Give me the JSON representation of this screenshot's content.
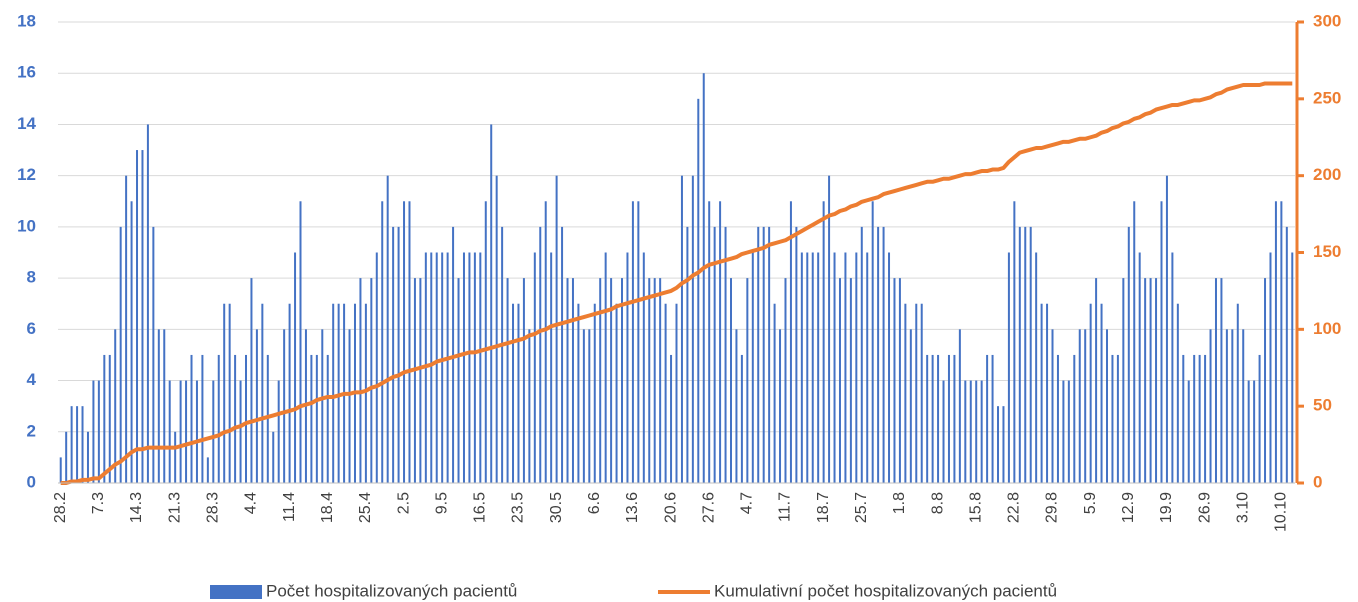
{
  "chart_data": {
    "type": "bar",
    "categories": [
      "28.2",
      null,
      null,
      null,
      null,
      null,
      null,
      "7.3",
      null,
      null,
      null,
      null,
      null,
      null,
      "14.3",
      null,
      null,
      null,
      null,
      null,
      null,
      "21.3",
      null,
      null,
      null,
      null,
      null,
      null,
      "28.3",
      null,
      null,
      null,
      null,
      null,
      null,
      "4.4",
      null,
      null,
      null,
      null,
      null,
      null,
      "11.4",
      null,
      null,
      null,
      null,
      null,
      null,
      "18.4",
      null,
      null,
      null,
      null,
      null,
      null,
      "25.4",
      null,
      null,
      null,
      null,
      null,
      null,
      "2.5",
      null,
      null,
      null,
      null,
      null,
      null,
      "9.5",
      null,
      null,
      null,
      null,
      null,
      null,
      "16.5",
      null,
      null,
      null,
      null,
      null,
      null,
      "23.5",
      null,
      null,
      null,
      null,
      null,
      null,
      "30.5",
      null,
      null,
      null,
      null,
      null,
      null,
      "6.6",
      null,
      null,
      null,
      null,
      null,
      null,
      "13.6",
      null,
      null,
      null,
      null,
      null,
      null,
      "20.6",
      null,
      null,
      null,
      null,
      null,
      null,
      "27.6",
      null,
      null,
      null,
      null,
      null,
      null,
      "4.7",
      null,
      null,
      null,
      null,
      null,
      null,
      "11.7",
      null,
      null,
      null,
      null,
      null,
      null,
      "18.7",
      null,
      null,
      null,
      null,
      null,
      null,
      "25.7",
      null,
      null,
      null,
      null,
      null,
      null,
      "1.8",
      null,
      null,
      null,
      null,
      null,
      null,
      "8.8",
      null,
      null,
      null,
      null,
      null,
      null,
      "15.8",
      null,
      null,
      null,
      null,
      null,
      null,
      "22.8",
      null,
      null,
      null,
      null,
      null,
      null,
      "29.8",
      null,
      null,
      null,
      null,
      null,
      null,
      "5.9",
      null,
      null,
      null,
      null,
      null,
      null,
      "12.9",
      null,
      null,
      null,
      null,
      null,
      null,
      "19.9",
      null,
      null,
      null,
      null,
      null,
      null,
      "26.9",
      null,
      null,
      null,
      null,
      null,
      null,
      "3.10",
      null,
      null,
      null,
      null,
      null,
      null,
      "10.10",
      null,
      null
    ],
    "series": [
      {
        "name": "Počet hospitalizovaných pacientů",
        "color": "#4472c4",
        "type": "bar",
        "values": [
          1,
          2,
          3,
          3,
          3,
          2,
          4,
          4,
          5,
          5,
          6,
          10,
          12,
          11,
          13,
          13,
          14,
          10,
          6,
          6,
          4,
          2,
          4,
          4,
          5,
          4,
          5,
          1,
          4,
          5,
          7,
          7,
          5,
          4,
          5,
          8,
          6,
          7,
          5,
          2,
          4,
          6,
          7,
          9,
          11,
          6,
          5,
          5,
          6,
          5,
          7,
          7,
          7,
          6,
          7,
          8,
          7,
          8,
          9,
          11,
          12,
          10,
          10,
          11,
          11,
          8,
          8,
          9,
          9,
          9,
          9,
          9,
          10,
          8,
          9,
          9,
          9,
          9,
          11,
          14,
          12,
          10,
          8,
          7,
          7,
          8,
          6,
          9,
          10,
          11,
          9,
          12,
          10,
          8,
          8,
          7,
          6,
          6,
          7,
          8,
          9,
          8,
          7,
          8,
          9,
          11,
          11,
          9,
          8,
          8,
          8,
          7,
          5,
          7,
          12,
          10,
          12,
          15,
          16,
          11,
          10,
          11,
          10,
          8,
          6,
          5,
          8,
          9,
          10,
          10,
          10,
          7,
          6,
          8,
          11,
          10,
          9,
          9,
          9,
          9,
          11,
          12,
          9,
          8,
          9,
          8,
          9,
          10,
          9,
          11,
          10,
          10,
          9,
          8,
          8,
          7,
          6,
          7,
          7,
          5,
          5,
          5,
          4,
          5,
          5,
          6,
          4,
          4,
          4,
          4,
          5,
          5,
          3,
          3,
          9,
          11,
          10,
          10,
          10,
          9,
          7,
          7,
          6,
          5,
          4,
          4,
          5,
          6,
          6,
          7,
          8,
          7,
          6,
          5,
          5,
          8,
          10,
          11,
          9,
          8,
          8,
          8,
          11,
          12,
          9,
          7,
          5,
          4,
          5,
          5,
          5,
          6,
          8,
          8,
          6,
          6,
          7,
          6,
          4,
          4,
          5,
          8,
          9,
          11,
          11,
          10,
          9
        ]
      },
      {
        "name": "Kumulativní počet hospitalizovaných pacientů",
        "color": "#ed7d31",
        "type": "line",
        "axis": "y2",
        "values": [
          0,
          0,
          1,
          1,
          2,
          2,
          3,
          3,
          6,
          9,
          12,
          14,
          17,
          20,
          22,
          22,
          23,
          23,
          23,
          23,
          23,
          23,
          24,
          25,
          26,
          27,
          28,
          29,
          30,
          31,
          33,
          34,
          36,
          37,
          39,
          40,
          41,
          42,
          43,
          44,
          45,
          46,
          47,
          48,
          50,
          51,
          52,
          54,
          55,
          56,
          56,
          57,
          58,
          58,
          59,
          59,
          60,
          62,
          63,
          65,
          67,
          69,
          70,
          72,
          73,
          74,
          75,
          76,
          77,
          79,
          80,
          81,
          82,
          83,
          84,
          85,
          85,
          86,
          87,
          88,
          89,
          90,
          91,
          92,
          93,
          94,
          96,
          97,
          99,
          100,
          102,
          103,
          104,
          105,
          106,
          107,
          108,
          109,
          110,
          111,
          112,
          113,
          115,
          116,
          117,
          118,
          119,
          120,
          121,
          122,
          123,
          124,
          125,
          127,
          130,
          132,
          135,
          137,
          140,
          142,
          143,
          144,
          145,
          146,
          147,
          149,
          150,
          151,
          152,
          153,
          155,
          156,
          157,
          158,
          160,
          162,
          164,
          166,
          168,
          170,
          172,
          174,
          175,
          177,
          178,
          180,
          181,
          183,
          184,
          185,
          186,
          188,
          189,
          190,
          191,
          192,
          193,
          194,
          195,
          196,
          196,
          197,
          198,
          198,
          199,
          200,
          201,
          201,
          202,
          203,
          203,
          204,
          204,
          205,
          209,
          212,
          215,
          216,
          217,
          218,
          218,
          219,
          220,
          221,
          222,
          222,
          223,
          224,
          224,
          225,
          226,
          228,
          229,
          231,
          232,
          234,
          235,
          237,
          238,
          240,
          241,
          243,
          244,
          245,
          246,
          246,
          247,
          248,
          249,
          249,
          250,
          251,
          253,
          254,
          256,
          257,
          258,
          259,
          259,
          259,
          259,
          260,
          260,
          260,
          260,
          260,
          260
        ]
      }
    ],
    "ylim": [
      0,
      18
    ],
    "yticks": [
      0,
      2,
      4,
      6,
      8,
      10,
      12,
      14,
      16,
      18
    ],
    "y2lim": [
      0,
      300
    ],
    "y2ticks": [
      0,
      50,
      100,
      150,
      200,
      250,
      300
    ],
    "grid": true,
    "legend": "bottom"
  }
}
